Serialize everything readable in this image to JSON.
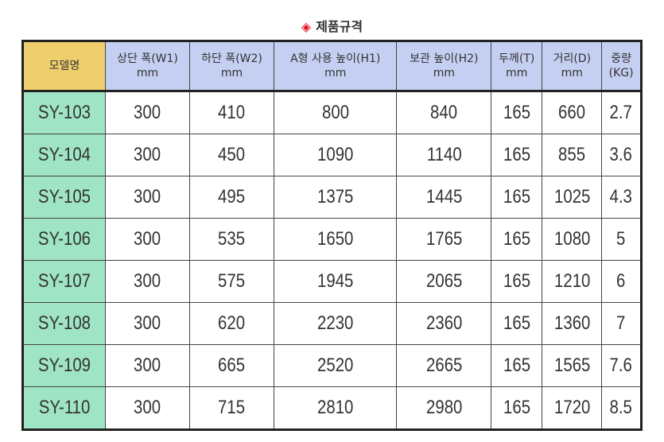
{
  "title": "제품규격",
  "icon": "diamond-icon",
  "colors": {
    "model_header": "#efcf6d",
    "header": "#c5cff1",
    "model_cell": "#9fe5c5",
    "accent": "#e0121b"
  },
  "headers": [
    {
      "label": "모델명",
      "unit": ""
    },
    {
      "label": "상단 폭(W1)",
      "unit": "mm"
    },
    {
      "label": "하단 폭(W2)",
      "unit": "mm"
    },
    {
      "label": "A형 사용 높이(H1)",
      "unit": "mm"
    },
    {
      "label": "보관 높이(H2)",
      "unit": "mm"
    },
    {
      "label": "두께(T)",
      "unit": "mm"
    },
    {
      "label": "거리(D)",
      "unit": "mm"
    },
    {
      "label": "중량",
      "unit": "(KG)"
    }
  ],
  "rows": [
    [
      "SY-103",
      "300",
      "410",
      "800",
      "840",
      "165",
      "660",
      "2.7"
    ],
    [
      "SY-104",
      "300",
      "450",
      "1090",
      "1140",
      "165",
      "855",
      "3.6"
    ],
    [
      "SY-105",
      "300",
      "495",
      "1375",
      "1445",
      "165",
      "1025",
      "4.3"
    ],
    [
      "SY-106",
      "300",
      "535",
      "1650",
      "1765",
      "165",
      "1080",
      "5"
    ],
    [
      "SY-107",
      "300",
      "575",
      "1945",
      "2065",
      "165",
      "1210",
      "6"
    ],
    [
      "SY-108",
      "300",
      "620",
      "2230",
      "2360",
      "165",
      "1360",
      "7"
    ],
    [
      "SY-109",
      "300",
      "665",
      "2520",
      "2665",
      "165",
      "1565",
      "7.6"
    ],
    [
      "SY-110",
      "300",
      "715",
      "2810",
      "2980",
      "165",
      "1720",
      "8.5"
    ]
  ]
}
